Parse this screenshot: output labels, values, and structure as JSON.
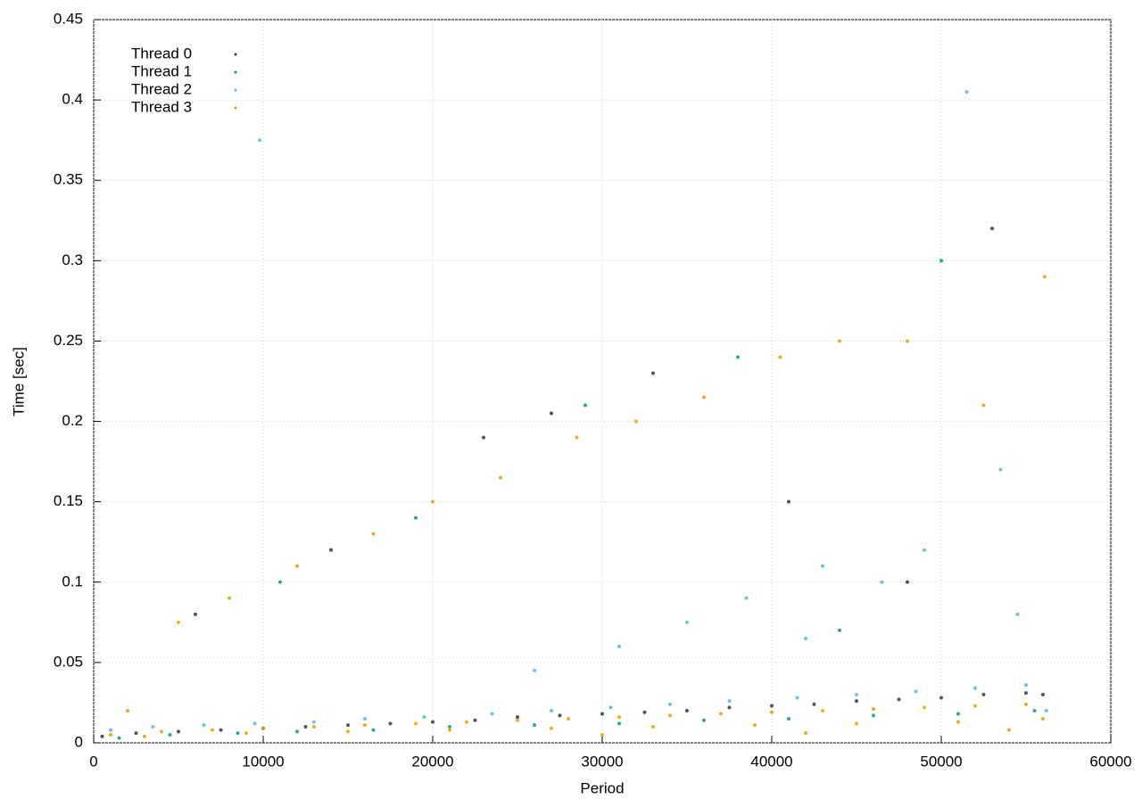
{
  "chart_data": {
    "type": "scatter",
    "xlabel": "Period",
    "ylabel": "Time [sec]",
    "xlim": [
      0,
      60000
    ],
    "ylim": [
      0,
      0.45
    ],
    "xticks": [
      0,
      10000,
      20000,
      30000,
      40000,
      50000,
      60000
    ],
    "yticks": [
      0,
      0.05,
      0.1,
      0.15,
      0.2,
      0.25,
      0.3,
      0.35,
      0.4,
      0.45
    ],
    "grid": true,
    "legend": "upper-left",
    "series": [
      {
        "name": "Thread 0",
        "color": "#2b3a42",
        "x": [
          500,
          2500,
          5000,
          7500,
          10000,
          12500,
          15000,
          17500,
          20000,
          22500,
          25000,
          27500,
          30000,
          32500,
          35000,
          37500,
          40000,
          42500,
          45000,
          47500,
          50000,
          52500,
          55000,
          56000,
          6000,
          14000,
          23000,
          27000,
          33000,
          41000,
          48000,
          53000
        ],
        "values": [
          0.004,
          0.006,
          0.007,
          0.008,
          0.009,
          0.01,
          0.011,
          0.012,
          0.013,
          0.014,
          0.016,
          0.017,
          0.018,
          0.019,
          0.02,
          0.022,
          0.023,
          0.024,
          0.026,
          0.027,
          0.028,
          0.03,
          0.031,
          0.03,
          0.08,
          0.12,
          0.19,
          0.205,
          0.23,
          0.15,
          0.1,
          0.32
        ]
      },
      {
        "name": "Thread 1",
        "color": "#009e73",
        "x": [
          1500,
          4500,
          8500,
          12000,
          16500,
          21000,
          26000,
          31000,
          36000,
          41000,
          46000,
          51000,
          55500,
          11000,
          19000,
          29000,
          38000,
          44000,
          50000
        ],
        "values": [
          0.003,
          0.005,
          0.006,
          0.007,
          0.008,
          0.01,
          0.011,
          0.012,
          0.014,
          0.015,
          0.017,
          0.018,
          0.02,
          0.1,
          0.14,
          0.21,
          0.24,
          0.07,
          0.3
        ]
      },
      {
        "name": "Thread 2",
        "color": "#56b4e9",
        "x": [
          1000,
          3500,
          6500,
          9500,
          13000,
          16000,
          19500,
          23500,
          27000,
          30500,
          34000,
          37500,
          41500,
          45000,
          48500,
          52000,
          55000,
          56200,
          31000,
          35000,
          38500,
          42000,
          46500,
          49000,
          51500,
          53500,
          54500,
          26000,
          9800,
          43000
        ],
        "values": [
          0.008,
          0.01,
          0.011,
          0.012,
          0.013,
          0.015,
          0.016,
          0.018,
          0.02,
          0.022,
          0.024,
          0.026,
          0.028,
          0.03,
          0.032,
          0.034,
          0.036,
          0.02,
          0.06,
          0.075,
          0.09,
          0.065,
          0.1,
          0.12,
          0.405,
          0.17,
          0.08,
          0.045,
          0.375,
          0.11
        ]
      },
      {
        "name": "Thread 3",
        "color": "#e69f00",
        "x": [
          1000,
          3000,
          4000,
          7000,
          9000,
          10000,
          13000,
          15000,
          16000,
          19000,
          21000,
          22000,
          25000,
          27000,
          28000,
          30000,
          31000,
          33000,
          34000,
          37000,
          39000,
          40000,
          42000,
          43000,
          45000,
          46000,
          49000,
          51000,
          52000,
          54000,
          55000,
          56000,
          2000,
          5000,
          8000,
          12000,
          16500,
          20000,
          24000,
          28500,
          32000,
          36000,
          40500,
          44000,
          48000,
          52500,
          56100
        ],
        "values": [
          0.005,
          0.004,
          0.007,
          0.008,
          0.006,
          0.009,
          0.01,
          0.007,
          0.011,
          0.012,
          0.008,
          0.013,
          0.014,
          0.009,
          0.015,
          0.005,
          0.016,
          0.01,
          0.017,
          0.018,
          0.011,
          0.019,
          0.006,
          0.02,
          0.012,
          0.021,
          0.022,
          0.013,
          0.023,
          0.008,
          0.024,
          0.015,
          0.02,
          0.075,
          0.09,
          0.11,
          0.13,
          0.15,
          0.165,
          0.19,
          0.2,
          0.215,
          0.24,
          0.25,
          0.25,
          0.21,
          0.29
        ]
      }
    ]
  }
}
